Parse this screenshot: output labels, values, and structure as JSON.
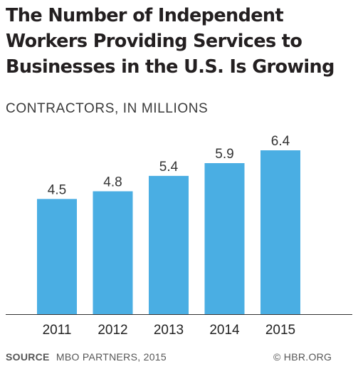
{
  "title_lines": [
    "The Number of Independent",
    "Workers Providing Services to",
    "Businesses in the U.S. Is Growing"
  ],
  "chart_data": {
    "type": "bar",
    "title": "The Number of Independent Workers Providing Services to Businesses in the U.S. Is Growing",
    "subtitle": "CONTRACTORS, IN MILLIONS",
    "categories": [
      "2011",
      "2012",
      "2013",
      "2014",
      "2015"
    ],
    "values": [
      4.5,
      4.8,
      5.4,
      5.9,
      6.4
    ],
    "data_labels": [
      "4.5",
      "4.8",
      "5.4",
      "5.9",
      "6.4"
    ],
    "ylim": [
      0,
      6.4
    ],
    "grid": false,
    "bar_color": "#4aaee3"
  },
  "footer": {
    "source_label": "SOURCE",
    "source_text": "MBO PARTNERS, 2015",
    "credit": "© HBR.ORG"
  }
}
